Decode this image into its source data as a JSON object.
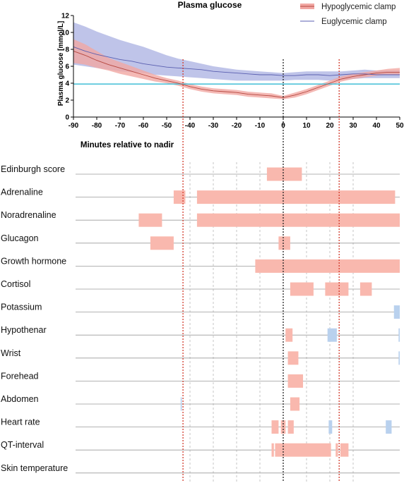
{
  "chart_data": {
    "type": "line",
    "title": "Plasma glucose",
    "ylabel": "Plasma glucose [mmol/L]",
    "xlabel": "Minutes relative to nadir",
    "xlim": [
      -90,
      50
    ],
    "ylim": [
      0,
      12
    ],
    "x_ticks": [
      -90,
      -80,
      -70,
      -60,
      -50,
      -40,
      -30,
      -20,
      -10,
      0,
      10,
      20,
      30,
      40,
      50
    ],
    "y_ticks": [
      0,
      2,
      4,
      6,
      8,
      10,
      12
    ],
    "threshold_line": {
      "y": 3.9,
      "color": "#4fc3d9"
    },
    "vertical_markers": [
      {
        "x": -43,
        "color": "#d23a2c",
        "style": "dotted"
      },
      {
        "x": 0,
        "color": "#222222",
        "style": "dotted"
      },
      {
        "x": 24,
        "color": "#d23a2c",
        "style": "dotted"
      }
    ],
    "legend": {
      "position": "top-right"
    },
    "series": [
      {
        "name": "Hypoglycemic clamp",
        "color": "#b5473f",
        "band_color": "#f1a7a3",
        "x": [
          -90,
          -85,
          -80,
          -75,
          -70,
          -65,
          -60,
          -55,
          -50,
          -45,
          -40,
          -35,
          -30,
          -25,
          -20,
          -15,
          -10,
          -5,
          0,
          5,
          10,
          15,
          20,
          25,
          30,
          35,
          40,
          45,
          50
        ],
        "y": [
          7.8,
          7.3,
          6.7,
          6.2,
          5.8,
          5.4,
          5.0,
          4.6,
          4.3,
          4.0,
          3.6,
          3.3,
          3.1,
          3.0,
          2.9,
          2.7,
          2.6,
          2.5,
          2.3,
          2.6,
          3.0,
          3.5,
          4.0,
          4.5,
          4.8,
          5.0,
          5.2,
          5.3,
          5.3
        ],
        "lower": [
          6.4,
          6.2,
          5.8,
          5.5,
          5.1,
          4.8,
          4.5,
          4.2,
          4.0,
          3.7,
          3.3,
          3.0,
          2.8,
          2.7,
          2.6,
          2.4,
          2.3,
          2.2,
          2.1,
          2.3,
          2.7,
          3.2,
          3.7,
          4.2,
          4.5,
          4.7,
          4.9,
          5.0,
          5.0
        ],
        "upper": [
          9.2,
          8.6,
          7.8,
          7.0,
          6.5,
          6.0,
          5.5,
          5.0,
          4.6,
          4.3,
          3.9,
          3.6,
          3.4,
          3.3,
          3.2,
          3.0,
          2.9,
          2.8,
          2.5,
          2.9,
          3.3,
          3.8,
          4.3,
          4.8,
          5.1,
          5.3,
          5.5,
          5.7,
          5.8
        ]
      },
      {
        "name": "Euglycemic clamp",
        "color": "#5a5fb0",
        "band_color": "#aab0e2",
        "x": [
          -90,
          -85,
          -80,
          -75,
          -70,
          -65,
          -60,
          -55,
          -50,
          -45,
          -40,
          -35,
          -30,
          -25,
          -20,
          -15,
          -10,
          -5,
          0,
          5,
          10,
          15,
          20,
          25,
          30,
          35,
          40,
          45,
          50
        ],
        "y": [
          8.3,
          7.8,
          7.4,
          7.1,
          6.8,
          6.6,
          6.3,
          6.1,
          5.9,
          5.8,
          5.7,
          5.6,
          5.4,
          5.3,
          5.2,
          5.1,
          5.0,
          5.0,
          4.9,
          4.9,
          5.0,
          5.0,
          4.9,
          5.0,
          5.1,
          5.1,
          5.0,
          5.0,
          5.0
        ],
        "lower": [
          6.2,
          6.0,
          5.8,
          5.6,
          5.4,
          5.3,
          5.2,
          5.0,
          4.9,
          4.8,
          4.7,
          4.6,
          4.5,
          4.4,
          4.3,
          4.3,
          4.3,
          4.3,
          4.3,
          4.4,
          4.4,
          4.4,
          4.3,
          4.4,
          4.5,
          4.6,
          4.6,
          4.6,
          4.6
        ],
        "upper": [
          11.2,
          10.7,
          10.1,
          9.6,
          9.1,
          8.7,
          8.3,
          7.8,
          7.3,
          6.9,
          6.6,
          6.3,
          6.0,
          5.8,
          5.6,
          5.5,
          5.4,
          5.3,
          5.2,
          5.3,
          5.4,
          5.4,
          5.4,
          5.4,
          5.5,
          5.6,
          5.5,
          5.5,
          5.5
        ]
      }
    ],
    "timeline": {
      "label_color_hyper": "#f9b8ae",
      "label_color_hypo": "#b9d1ee",
      "dashed_gridlines": [
        -40,
        -30,
        -20,
        -10,
        10,
        20,
        30
      ],
      "rows": [
        {
          "label": "Edinburgh score",
          "segments": [
            {
              "start": -7,
              "end": 8,
              "kind": "increase"
            }
          ]
        },
        {
          "label": "Adrenaline",
          "segments": [
            {
              "start": -47,
              "end": -42,
              "kind": "increase"
            },
            {
              "start": -37,
              "end": 48,
              "kind": "increase"
            }
          ]
        },
        {
          "label": "Noradrenaline",
          "segments": [
            {
              "start": -62,
              "end": -52,
              "kind": "increase"
            },
            {
              "start": -37,
              "end": 50,
              "kind": "increase"
            }
          ]
        },
        {
          "label": "Glucagon",
          "segments": [
            {
              "start": -57,
              "end": -47,
              "kind": "increase"
            },
            {
              "start": -2,
              "end": 3,
              "kind": "increase"
            }
          ]
        },
        {
          "label": "Growth hormone",
          "segments": [
            {
              "start": -12,
              "end": 50,
              "kind": "increase"
            }
          ]
        },
        {
          "label": "Cortisol",
          "segments": [
            {
              "start": 3,
              "end": 13,
              "kind": "increase"
            },
            {
              "start": 18,
              "end": 28,
              "kind": "increase"
            },
            {
              "start": 33,
              "end": 38,
              "kind": "increase"
            }
          ]
        },
        {
          "label": "Potassium",
          "segments": [
            {
              "start": 47.5,
              "end": 50,
              "kind": "decrease"
            }
          ]
        },
        {
          "label": "Hypothenar",
          "segments": [
            {
              "start": 1,
              "end": 4,
              "kind": "increase"
            },
            {
              "start": 19,
              "end": 23,
              "kind": "decrease"
            },
            {
              "start": 49.5,
              "end": 50,
              "kind": "decrease"
            }
          ]
        },
        {
          "label": "Wrist",
          "segments": [
            {
              "start": 2,
              "end": 6.5,
              "kind": "increase"
            },
            {
              "start": 49.5,
              "end": 50,
              "kind": "decrease"
            }
          ]
        },
        {
          "label": "Forehead",
          "segments": [
            {
              "start": 2,
              "end": 8.5,
              "kind": "increase"
            }
          ]
        },
        {
          "label": "Abdomen",
          "segments": [
            {
              "start": -44,
              "end": -43.5,
              "kind": "decrease"
            },
            {
              "start": 3,
              "end": 7,
              "kind": "increase"
            }
          ]
        },
        {
          "label": "Heart rate",
          "segments": [
            {
              "start": -5,
              "end": -2,
              "kind": "increase"
            },
            {
              "start": -1,
              "end": 1,
              "kind": "increase"
            },
            {
              "start": 2,
              "end": 4.5,
              "kind": "increase"
            },
            {
              "start": 19.5,
              "end": 21,
              "kind": "decrease"
            },
            {
              "start": 44,
              "end": 46.5,
              "kind": "decrease"
            }
          ]
        },
        {
          "label": "QT-interval",
          "segments": [
            {
              "start": -5,
              "end": -4,
              "kind": "increase"
            },
            {
              "start": -3.5,
              "end": 20.5,
              "kind": "increase"
            },
            {
              "start": 22.5,
              "end": 23.5,
              "kind": "increase"
            },
            {
              "start": 24.5,
              "end": 28,
              "kind": "increase"
            }
          ]
        },
        {
          "label": "Skin temperature",
          "segments": []
        }
      ]
    }
  }
}
